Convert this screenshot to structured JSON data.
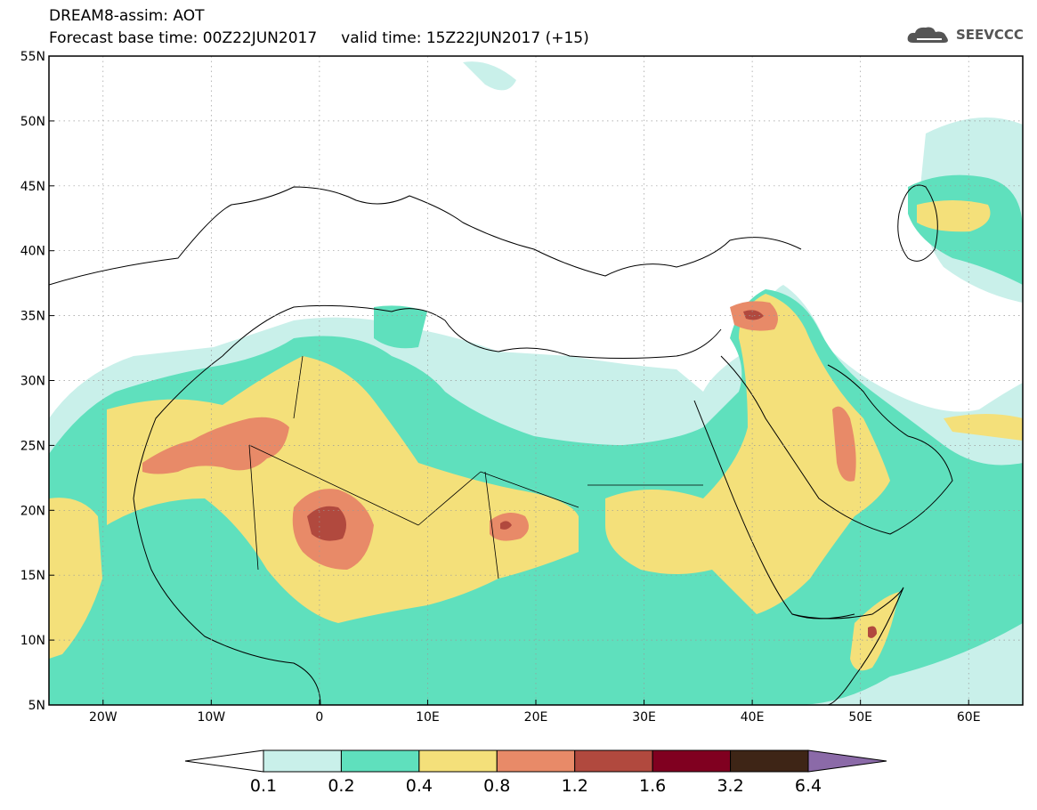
{
  "header": {
    "line1": "DREAM8-assim: AOT",
    "line2": "Forecast base time: 00Z22JUN2017     valid time: 15Z22JUN2017 (+15)"
  },
  "logo": {
    "text": "SEEVCCC",
    "icon": "cloud-icon"
  },
  "map": {
    "lat_labels": [
      "55N",
      "50N",
      "45N",
      "40N",
      "35N",
      "30N",
      "25N",
      "20N",
      "15N",
      "10N",
      "5N"
    ],
    "lon_labels": [
      "20W",
      "10W",
      "0",
      "10E",
      "20E",
      "30E",
      "40E",
      "50E",
      "60E"
    ],
    "lon_range": [
      -25,
      65
    ],
    "lat_range": [
      5,
      55
    ],
    "grid": "dotted"
  },
  "colorbar": {
    "labels": [
      "0.1",
      "0.2",
      "0.4",
      "0.8",
      "1.2",
      "1.6",
      "3.2",
      "6.4"
    ],
    "colors": [
      "#ffffff",
      "#c9f0ea",
      "#5fe0bd",
      "#f4e07a",
      "#e88a68",
      "#b1493e",
      "#800020",
      "#3e2516",
      "#8b6aa8"
    ]
  }
}
